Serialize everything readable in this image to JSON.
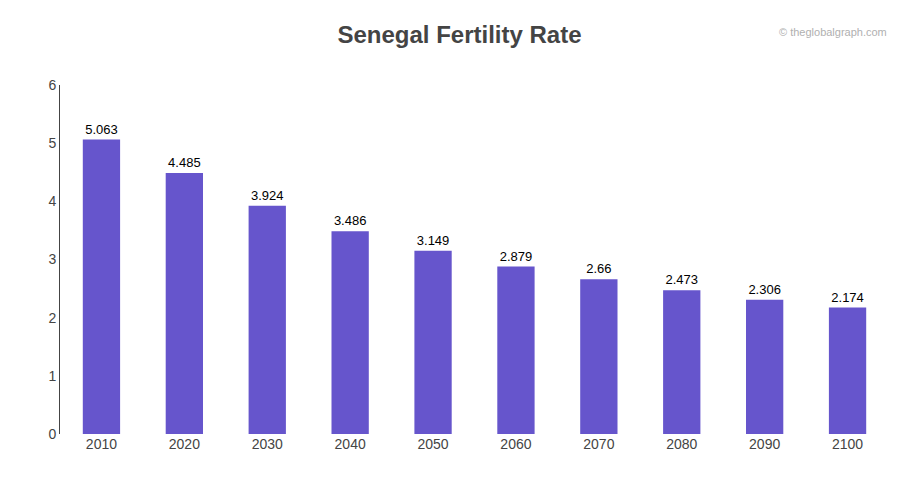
{
  "chart_data": {
    "type": "bar",
    "title": "Senegal Fertility Rate",
    "categories": [
      "2010",
      "2020",
      "2030",
      "2040",
      "2050",
      "2060",
      "2070",
      "2080",
      "2090",
      "2100"
    ],
    "values": [
      5.063,
      4.485,
      3.924,
      3.486,
      3.149,
      2.879,
      2.66,
      2.473,
      2.306,
      2.174
    ],
    "color": "#6655cc",
    "ylim": [
      0,
      6
    ],
    "yticks": [
      0,
      1,
      2,
      3,
      4,
      5,
      6
    ],
    "grid": false,
    "data_labels": true,
    "annotations": [
      "© theglobalgraph.com"
    ]
  }
}
